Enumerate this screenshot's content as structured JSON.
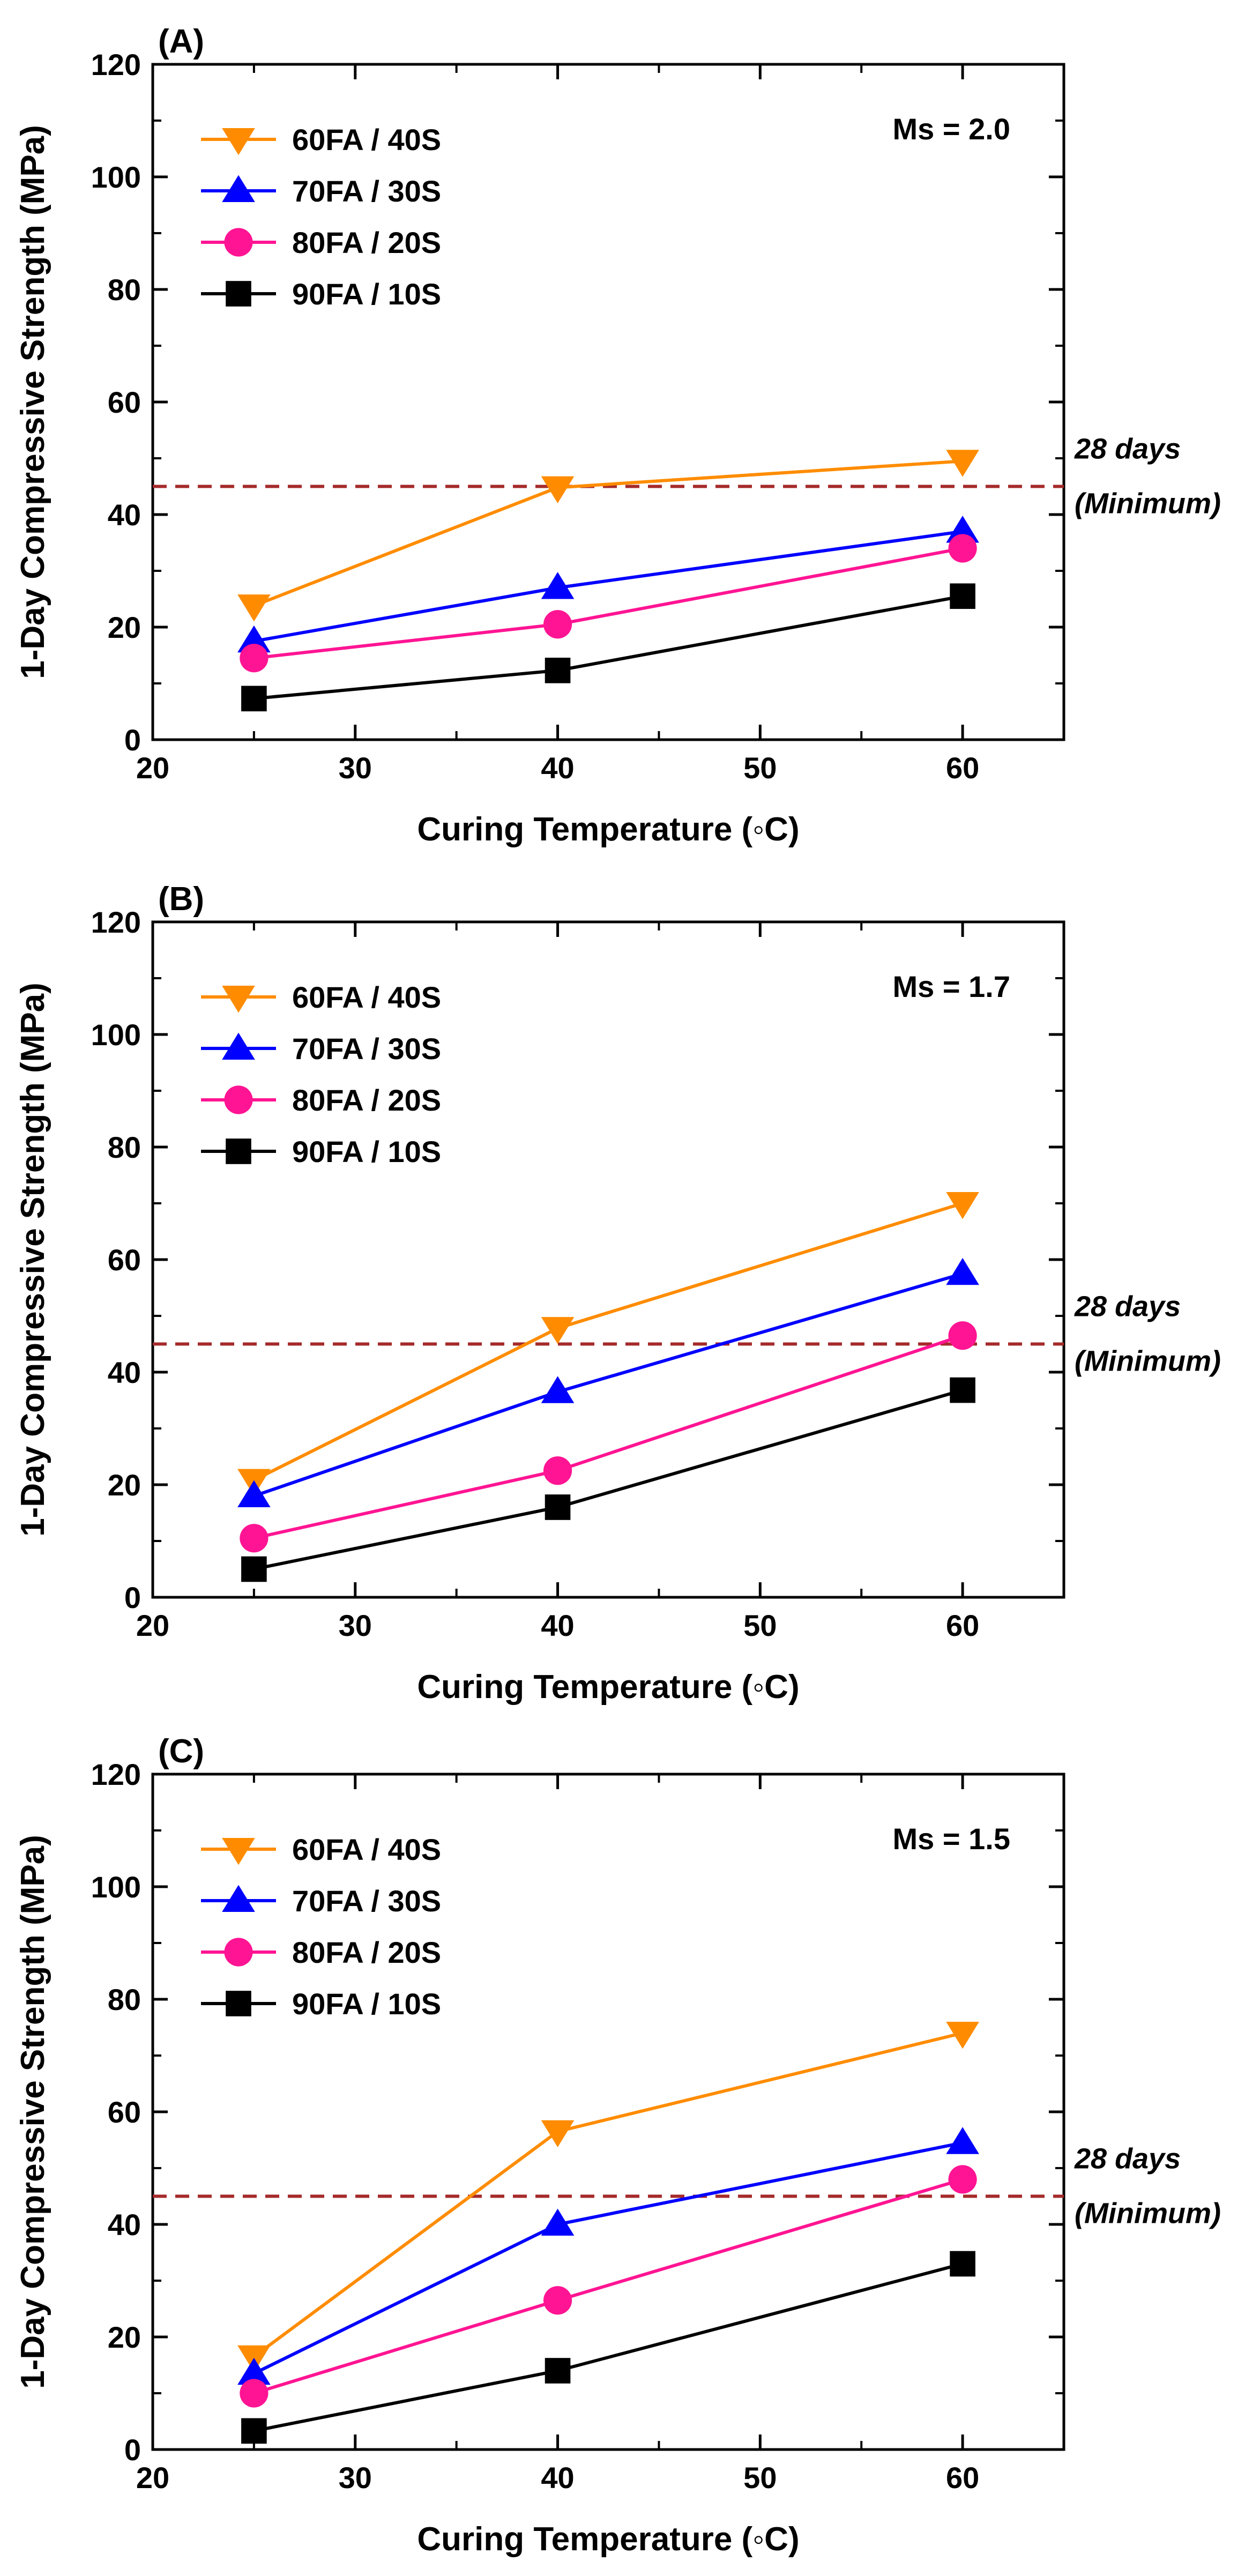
{
  "colors": {
    "60FA / 40S": "#ff8c00",
    "70FA / 30S": "#0000ff",
    "80FA / 20S": "#ff1493",
    "90FA / 10S": "#000000",
    "reference": "#a52a2a"
  },
  "chart_data": [
    {
      "type": "line",
      "panel_label": "(A)",
      "annotation": "Ms = 2.0",
      "xlabel": "Curing Temperature (◦C)",
      "ylabel": "1-Day Compressive Strength (MPa)",
      "xlim": [
        20,
        65
      ],
      "ylim": [
        0,
        120
      ],
      "xticks": [
        "20",
        "30",
        "40",
        "50",
        "60"
      ],
      "yticks": [
        "0",
        "20",
        "40",
        "60",
        "80",
        "100",
        "120"
      ],
      "x": [
        25,
        40,
        60
      ],
      "series": [
        {
          "name": "60FA / 40S",
          "marker": "triangle-down",
          "values": [
            23.8,
            44.8,
            49.5
          ]
        },
        {
          "name": "70FA / 30S",
          "marker": "triangle-up",
          "values": [
            17.5,
            27.0,
            37.0
          ]
        },
        {
          "name": "80FA / 20S",
          "marker": "circle",
          "values": [
            14.5,
            20.5,
            34.0
          ]
        },
        {
          "name": "90FA / 10S",
          "marker": "square",
          "values": [
            7.3,
            12.3,
            25.5
          ]
        }
      ],
      "reference_line": {
        "y": 45,
        "label_line1": "28 days",
        "label_line2": "(Minimum)"
      },
      "legend": "top-left"
    },
    {
      "type": "line",
      "panel_label": "(B)",
      "annotation": "Ms = 1.7",
      "xlabel": "Curing Temperature (◦C)",
      "ylabel": "1-Day Compressive Strength (MPa)",
      "xlim": [
        20,
        65
      ],
      "ylim": [
        0,
        120
      ],
      "xticks": [
        "20",
        "30",
        "40",
        "50",
        "60"
      ],
      "yticks": [
        "0",
        "20",
        "40",
        "60",
        "80",
        "100",
        "120"
      ],
      "x": [
        25,
        40,
        60
      ],
      "series": [
        {
          "name": "60FA / 40S",
          "marker": "triangle-down",
          "values": [
            20.8,
            47.8,
            70.0
          ]
        },
        {
          "name": "70FA / 30S",
          "marker": "triangle-up",
          "values": [
            18.0,
            36.5,
            57.5
          ]
        },
        {
          "name": "80FA / 20S",
          "marker": "circle",
          "values": [
            10.5,
            22.5,
            46.5
          ]
        },
        {
          "name": "90FA / 10S",
          "marker": "square",
          "values": [
            5.0,
            16.0,
            36.8
          ]
        }
      ],
      "reference_line": {
        "y": 45,
        "label_line1": "28 days",
        "label_line2": "(Minimum)"
      },
      "legend": "top-left"
    },
    {
      "type": "line",
      "panel_label": "(C)",
      "annotation": "Ms = 1.5",
      "xlabel": "Curing Temperature (◦C)",
      "ylabel": "1-Day Compressive Strength (MPa)",
      "xlim": [
        20,
        65
      ],
      "ylim": [
        0,
        120
      ],
      "xticks": [
        "20",
        "30",
        "40",
        "50",
        "60"
      ],
      "yticks": [
        "0",
        "20",
        "40",
        "60",
        "80",
        "100",
        "120"
      ],
      "x": [
        25,
        40,
        60
      ],
      "series": [
        {
          "name": "60FA / 40S",
          "marker": "triangle-down",
          "values": [
            16.5,
            56.5,
            74.0
          ]
        },
        {
          "name": "70FA / 30S",
          "marker": "triangle-up",
          "values": [
            13.5,
            40.0,
            54.5
          ]
        },
        {
          "name": "80FA / 20S",
          "marker": "circle",
          "values": [
            10.0,
            26.5,
            48.0
          ]
        },
        {
          "name": "90FA / 10S",
          "marker": "square",
          "values": [
            3.3,
            14.0,
            33.0
          ]
        }
      ],
      "reference_line": {
        "y": 45,
        "label_line1": "28 days",
        "label_line2": "(Minimum)"
      },
      "legend": "top-left"
    }
  ]
}
